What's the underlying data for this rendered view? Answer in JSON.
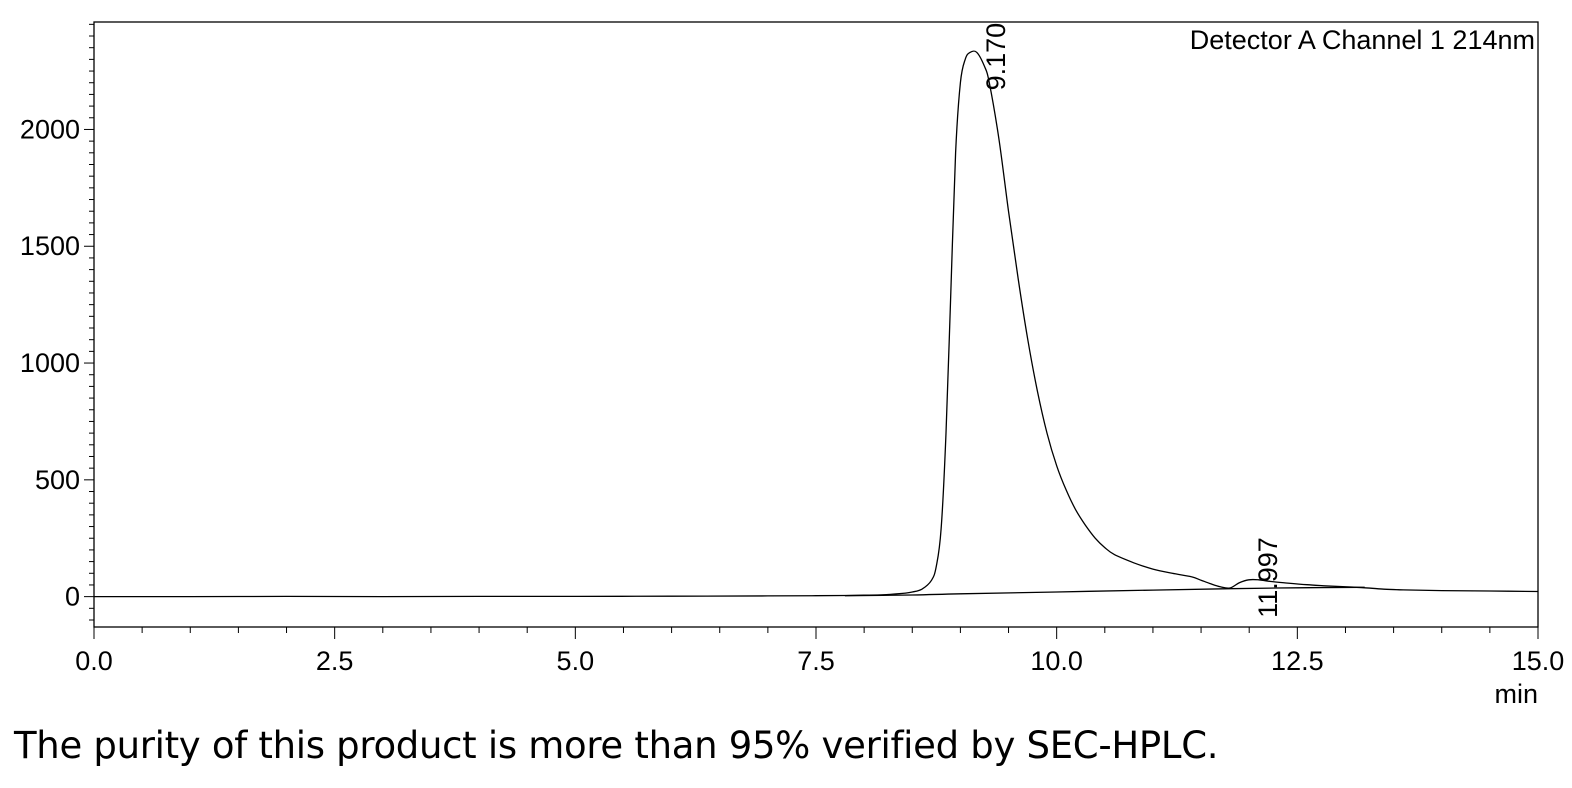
{
  "chart_data": {
    "type": "line",
    "legend": "Detector A Channel 1 214nm",
    "xunit": "min",
    "xlim": [
      0.0,
      15.0
    ],
    "ylim": [
      -130,
      2460
    ],
    "xticks": [
      "0.0",
      "2.5",
      "5.0",
      "7.5",
      "10.0",
      "12.5",
      "15.0"
    ],
    "yticks": [
      "0",
      "500",
      "1000",
      "1500",
      "2000"
    ],
    "grid": false,
    "peak_labels": [
      {
        "label": "9.170",
        "x": 9.17,
        "y": 2330
      },
      {
        "label": "11.997",
        "x": 11.997,
        "y": 72
      }
    ],
    "series": [
      {
        "x": [
          0.0,
          1.0,
          2.0,
          3.0,
          4.0,
          5.0,
          6.0,
          7.0,
          7.5,
          7.8,
          8.0,
          8.2,
          8.4,
          8.5,
          8.6,
          8.7,
          8.75,
          8.8,
          8.85,
          8.9,
          8.95,
          9.0,
          9.05,
          9.1,
          9.17,
          9.25,
          9.3,
          9.4,
          9.5,
          9.6,
          9.7,
          9.8,
          9.9,
          10.0,
          10.1,
          10.2,
          10.3,
          10.4,
          10.5,
          10.6,
          10.8,
          11.0,
          11.2,
          11.4,
          11.5,
          11.6,
          11.7,
          11.8,
          11.9,
          11.997,
          12.1,
          12.2,
          12.4,
          12.6,
          12.8,
          13.0,
          13.2,
          13.4,
          13.6,
          14.0,
          14.5,
          15.0
        ],
        "y": [
          0,
          0,
          1,
          0,
          1,
          1,
          2,
          3,
          4,
          5,
          6,
          8,
          14,
          20,
          32,
          70,
          130,
          290,
          700,
          1300,
          1900,
          2200,
          2300,
          2330,
          2330,
          2270,
          2200,
          1960,
          1650,
          1360,
          1100,
          880,
          700,
          560,
          455,
          370,
          305,
          250,
          210,
          180,
          145,
          118,
          100,
          85,
          70,
          55,
          42,
          37,
          60,
          72,
          72,
          66,
          58,
          51,
          46,
          42,
          38,
          32,
          29,
          26,
          24,
          22
        ]
      },
      {
        "x": [
          7.8,
          8.5,
          9.0,
          10.0,
          11.0,
          11.8,
          12.5,
          13.2
        ],
        "y": [
          4,
          7,
          12,
          20,
          28,
          34,
          38,
          40
        ]
      }
    ]
  },
  "caption": "The purity of this product is more than 95% verified by SEC-HPLC."
}
